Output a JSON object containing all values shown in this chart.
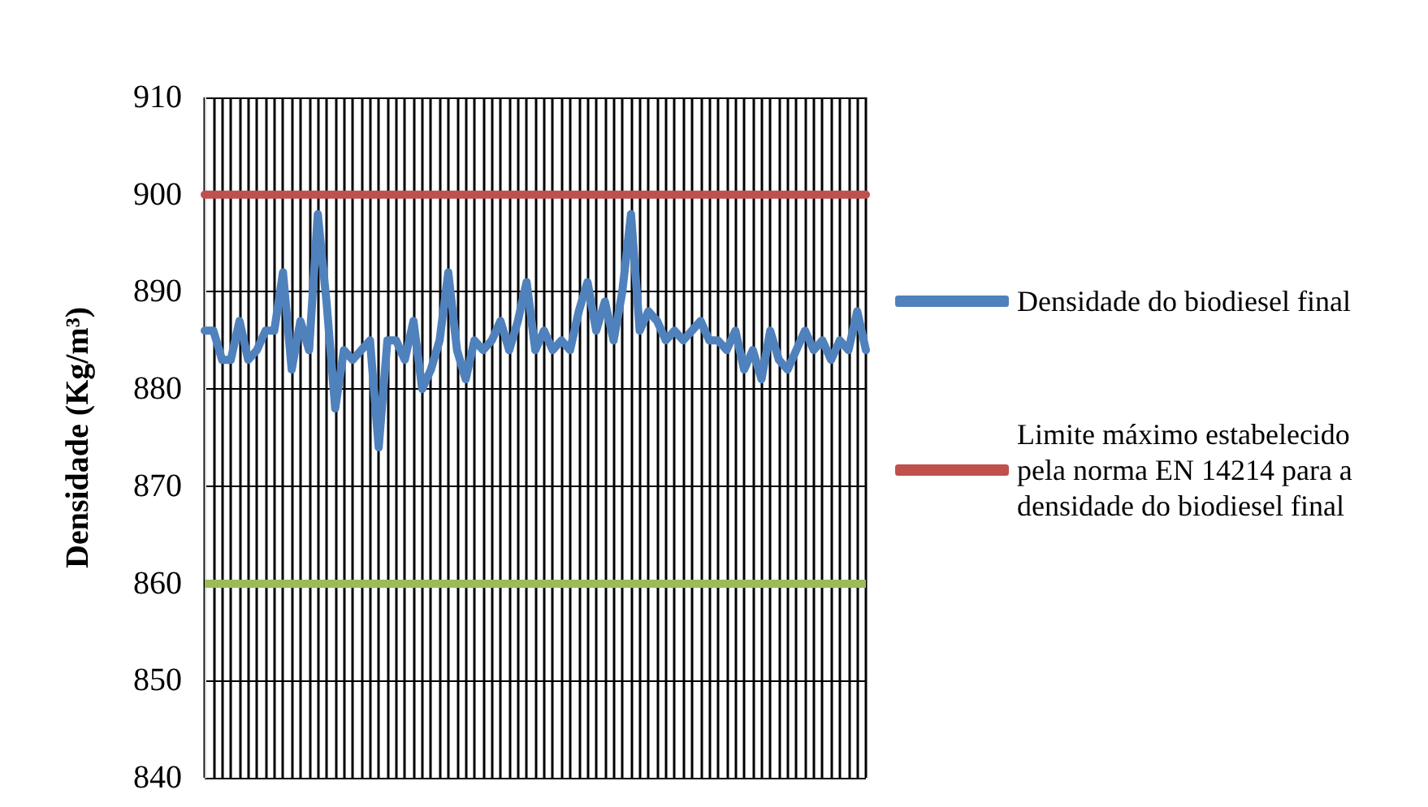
{
  "chart_data": {
    "type": "line",
    "ylabel": "Densidade (Kg/m³)",
    "categories": [
      null,
      null,
      null,
      null,
      null,
      null,
      null,
      null,
      null,
      null,
      null,
      null,
      null,
      null,
      null,
      null,
      null,
      null,
      null,
      null,
      null,
      null,
      null,
      null,
      null,
      null,
      null,
      null,
      null,
      null,
      null,
      null,
      null,
      null,
      null,
      null,
      null,
      null,
      null,
      null,
      null,
      null,
      null,
      null,
      null,
      null,
      null,
      null,
      null,
      null,
      null,
      null,
      null,
      null,
      null,
      null,
      null,
      null,
      null,
      null,
      null,
      null,
      null,
      null,
      null,
      null,
      null,
      null,
      null,
      null,
      null,
      null,
      null,
      null,
      null,
      null,
      null
    ],
    "series": [
      {
        "name": "Densidade do biodiesel final",
        "color": "#4f81bd",
        "values": [
          886,
          886,
          883,
          883,
          887,
          883,
          884,
          886,
          886,
          892,
          882,
          887,
          884,
          898,
          889,
          878,
          884,
          883,
          884,
          885,
          874,
          885,
          885,
          883,
          887,
          880,
          882,
          885,
          892,
          884,
          881,
          885,
          884,
          885,
          887,
          884,
          887,
          891,
          884,
          886,
          884,
          885,
          884,
          888,
          891,
          886,
          889,
          885,
          890,
          898,
          886,
          888,
          887,
          885,
          886,
          885,
          886,
          887,
          885,
          885,
          884,
          886,
          882,
          884,
          881,
          886,
          883,
          882,
          884,
          886,
          884,
          885,
          883,
          885,
          884,
          888,
          884
        ]
      },
      {
        "name": "Limite máximo estabelecido pela norma EN 14214 para a densidade do biodiesel final",
        "color": "#c0504d",
        "values": [
          900,
          900,
          900,
          900,
          900,
          900,
          900,
          900,
          900,
          900,
          900,
          900,
          900,
          900,
          900,
          900,
          900,
          900,
          900,
          900,
          900,
          900,
          900,
          900,
          900,
          900,
          900,
          900,
          900,
          900,
          900,
          900,
          900,
          900,
          900,
          900,
          900,
          900,
          900,
          900,
          900,
          900,
          900,
          900,
          900,
          900,
          900,
          900,
          900,
          900,
          900,
          900,
          900,
          900,
          900,
          900,
          900,
          900,
          900,
          900,
          900,
          900,
          900,
          900,
          900,
          900,
          900,
          900,
          900,
          900,
          900,
          900,
          900,
          900,
          900,
          900,
          900
        ]
      }
    ],
    "ylim": [
      840,
      910
    ],
    "yticks": [
      840,
      850,
      860,
      870,
      880,
      890,
      900,
      910
    ],
    "ref_lines": [
      {
        "axis": "y",
        "value": 860,
        "color": "#9bbb59"
      }
    ],
    "grid": true,
    "legend": "right",
    "line_style": "solid",
    "tick_labels": "y"
  }
}
